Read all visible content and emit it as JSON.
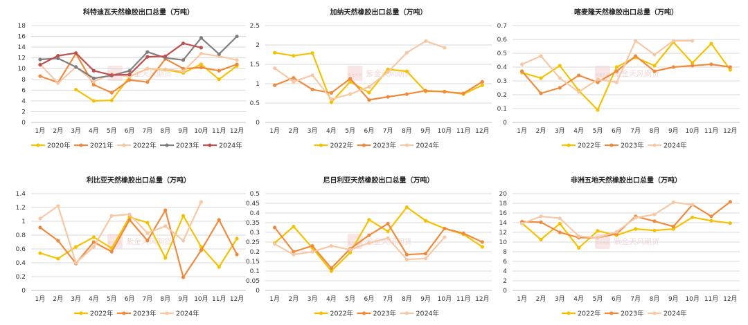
{
  "watermark": {
    "text": "紫金天风期货",
    "seal_text": "紫金天风"
  },
  "chart_data": [
    {
      "type": "line",
      "title": "科特迪瓦天然橡胶出口总量（万吨）",
      "categories": [
        "1月",
        "2月",
        "3月",
        "4月",
        "5月",
        "6月",
        "7月",
        "8月",
        "9月",
        "10月",
        "11月",
        "12月"
      ],
      "ylim": [
        0,
        18
      ],
      "yticks": [
        0,
        2,
        4,
        6,
        8,
        10,
        12,
        14,
        16,
        18
      ],
      "grid": true,
      "legend_position": "bottom",
      "series": [
        {
          "name": "2020年",
          "color": "#f5c200",
          "values": [
            null,
            null,
            6.1,
            4.0,
            4.1,
            8.5,
            10.0,
            9.8,
            9.2,
            10.8,
            8.0,
            10.5
          ]
        },
        {
          "name": "2021年",
          "color": "#f08a3c",
          "values": [
            8.6,
            7.4,
            12.8,
            7.0,
            5.5,
            7.9,
            7.5,
            11.8,
            10.0,
            10.2,
            9.6,
            10.8
          ]
        },
        {
          "name": "2022年",
          "color": "#f6c8a6",
          "values": [
            10.8,
            7.3,
            10.3,
            7.6,
            9.0,
            8.5,
            10.0,
            9.9,
            9.5,
            12.8,
            12.3,
            11.6
          ]
        },
        {
          "name": "2023年",
          "color": "#7f7f7f",
          "values": [
            11.7,
            11.9,
            10.3,
            8.2,
            8.7,
            9.6,
            13.1,
            12.0,
            11.6,
            15.7,
            12.7,
            16.0
          ]
        },
        {
          "name": "2024年",
          "color": "#c0504d",
          "values": [
            10.7,
            12.4,
            12.9,
            9.6,
            8.8,
            8.9,
            12.2,
            12.3,
            14.7,
            13.9,
            null,
            null
          ]
        }
      ]
    },
    {
      "type": "line",
      "title": "加纳天然橡胶出口总量（万吨）",
      "categories": [
        "1月",
        "2月",
        "3月",
        "4月",
        "5月",
        "6月",
        "7月",
        "8月",
        "9月",
        "10月",
        "11月",
        "12月"
      ],
      "ylim": [
        0,
        2.5
      ],
      "yticks": [
        0,
        0.5,
        1,
        1.5,
        2,
        2.5
      ],
      "grid": true,
      "legend_position": "bottom",
      "series": [
        {
          "name": "2022年",
          "color": "#f5c200",
          "values": [
            1.8,
            1.72,
            1.79,
            0.52,
            1.05,
            0.77,
            1.37,
            1.32,
            0.8,
            0.8,
            0.73,
            0.96
          ]
        },
        {
          "name": "2023年",
          "color": "#f08a3c",
          "values": [
            0.96,
            1.15,
            0.85,
            0.76,
            1.13,
            0.58,
            0.66,
            0.73,
            0.82,
            0.79,
            0.75,
            1.05
          ]
        },
        {
          "name": "2024年",
          "color": "#f6c8a6",
          "values": [
            1.4,
            1.05,
            1.22,
            0.6,
            0.73,
            0.92,
            1.3,
            1.8,
            2.1,
            1.93,
            null,
            null
          ]
        }
      ]
    },
    {
      "type": "line",
      "title": "喀麦隆天然橡胶出口总量（万吨）",
      "categories": [
        "1月",
        "2月",
        "3月",
        "4月",
        "5月",
        "6月",
        "7月",
        "8月",
        "9月",
        "10月",
        "11月",
        "12月"
      ],
      "ylim": [
        0,
        0.7
      ],
      "yticks": [
        0,
        0.1,
        0.2,
        0.3,
        0.4,
        0.5,
        0.6,
        0.7
      ],
      "grid": true,
      "legend_position": "bottom",
      "series": [
        {
          "name": "2022年",
          "color": "#f5c200",
          "values": [
            0.36,
            0.32,
            0.41,
            0.23,
            0.09,
            0.4,
            0.47,
            0.41,
            0.58,
            0.43,
            0.57,
            0.38
          ]
        },
        {
          "name": "2023年",
          "color": "#f08a3c",
          "values": [
            0.37,
            0.21,
            0.25,
            0.34,
            0.29,
            0.37,
            0.48,
            0.37,
            0.4,
            0.41,
            0.42,
            0.4
          ]
        },
        {
          "name": "2024年",
          "color": "#f6c8a6",
          "values": [
            0.42,
            0.48,
            0.32,
            0.22,
            0.31,
            0.29,
            0.59,
            0.49,
            0.59,
            0.59,
            null,
            null
          ]
        }
      ]
    },
    {
      "type": "line",
      "title": "利比亚天然橡胶出口总量（万吨）",
      "categories": [
        "1月",
        "2月",
        "3月",
        "4月",
        "5月",
        "6月",
        "7月",
        "8月",
        "9月",
        "10月",
        "11月",
        "12月"
      ],
      "ylim": [
        0,
        1.4
      ],
      "yticks": [
        0,
        0.2,
        0.4,
        0.6,
        0.8,
        1,
        1.2,
        1.4
      ],
      "grid": true,
      "legend_position": "bottom",
      "series": [
        {
          "name": "2022年",
          "color": "#f5c200",
          "values": [
            0.54,
            0.46,
            0.63,
            0.77,
            0.61,
            1.06,
            0.98,
            0.47,
            1.08,
            0.63,
            0.34,
            0.75
          ]
        },
        {
          "name": "2023年",
          "color": "#f08a3c",
          "values": [
            0.91,
            0.72,
            0.39,
            0.7,
            0.56,
            1.02,
            0.72,
            1.16,
            0.19,
            0.58,
            1.02,
            0.52
          ]
        },
        {
          "name": "2024年",
          "color": "#f6c8a6",
          "values": [
            1.04,
            1.22,
            0.4,
            0.63,
            1.08,
            1.1,
            0.83,
            0.93,
            0.72,
            1.28,
            null,
            null
          ]
        }
      ]
    },
    {
      "type": "line",
      "title": "尼日利亚天然橡胶出口总量（万吨）",
      "categories": [
        "1月",
        "2月",
        "3月",
        "4月",
        "5月",
        "6月",
        "7月",
        "8月",
        "9月",
        "10月",
        "11月",
        "12月"
      ],
      "ylim": [
        0,
        0.5
      ],
      "yticks": [
        0,
        0.05,
        0.1,
        0.15,
        0.2,
        0.25,
        0.3,
        0.35,
        0.4,
        0.45,
        0.5
      ],
      "grid": true,
      "legend_position": "bottom",
      "series": [
        {
          "name": "2022年",
          "color": "#f5c200",
          "values": [
            0.245,
            0.33,
            0.22,
            0.1,
            0.195,
            0.365,
            0.305,
            0.43,
            0.36,
            0.32,
            0.29,
            0.225
          ]
        },
        {
          "name": "2023年",
          "color": "#f08a3c",
          "values": [
            0.325,
            0.2,
            0.23,
            0.115,
            0.215,
            0.285,
            0.345,
            0.185,
            0.19,
            0.32,
            0.295,
            0.25
          ]
        },
        {
          "name": "2024年",
          "color": "#f6c8a6",
          "values": [
            0.24,
            0.185,
            0.2,
            0.23,
            0.21,
            0.245,
            0.27,
            0.16,
            0.165,
            0.275,
            null,
            null
          ]
        }
      ]
    },
    {
      "type": "line",
      "title": "非洲五地天然橡胶出口总量（万吨）",
      "categories": [
        "1月",
        "2月",
        "3月",
        "4月",
        "5月",
        "6月",
        "7月",
        "8月",
        "9月",
        "10月",
        "11月",
        "12月"
      ],
      "ylim": [
        0,
        20
      ],
      "yticks": [
        0,
        2,
        4,
        6,
        8,
        10,
        12,
        14,
        16,
        18,
        20
      ],
      "grid": true,
      "legend_position": "bottom",
      "series": [
        {
          "name": "2022年",
          "color": "#f5c200",
          "values": [
            13.9,
            10.5,
            13.8,
            8.8,
            12.3,
            11.4,
            12.7,
            12.4,
            12.7,
            15.1,
            14.4,
            13.9
          ]
        },
        {
          "name": "2023年",
          "color": "#f08a3c",
          "values": [
            14.2,
            14.1,
            12.0,
            10.9,
            10.9,
            11.7,
            15.3,
            14.3,
            13.2,
            17.7,
            15.3,
            18.3
          ]
        },
        {
          "name": "2024年",
          "color": "#f6c8a6",
          "values": [
            13.8,
            15.3,
            14.9,
            11.2,
            10.9,
            12.1,
            15.0,
            15.7,
            18.2,
            17.7,
            null,
            null
          ]
        }
      ]
    }
  ]
}
